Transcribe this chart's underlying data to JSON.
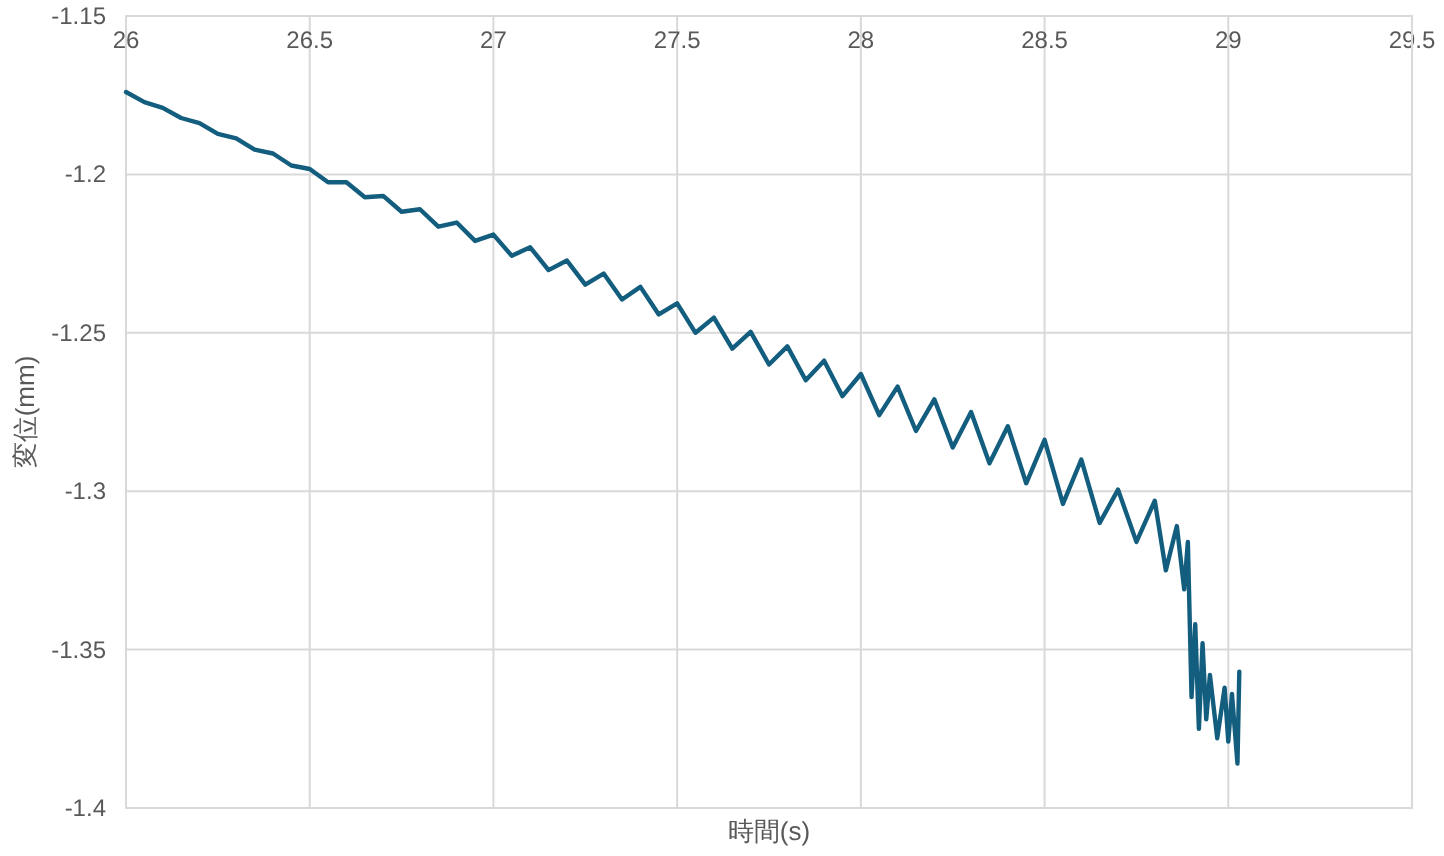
{
  "chart_data": {
    "type": "line",
    "xlabel": "時間(s)",
    "ylabel": "変位(mm)",
    "xlim": [
      26,
      29.5
    ],
    "ylim": [
      -1.4,
      -1.15
    ],
    "xticks": [
      26,
      26.5,
      27,
      27.5,
      28,
      28.5,
      29,
      29.5
    ],
    "yticks": [
      -1.4,
      -1.35,
      -1.3,
      -1.25,
      -1.2,
      -1.15
    ],
    "grid": true,
    "series": [
      {
        "color": "#135e7e",
        "x": [
          26.0,
          26.05,
          26.1,
          26.15,
          26.2,
          26.25,
          26.3,
          26.35,
          26.4,
          26.45,
          26.5,
          26.55,
          26.6,
          26.65,
          26.7,
          26.75,
          26.8,
          26.85,
          26.9,
          26.95,
          27.0,
          27.05,
          27.1,
          27.15,
          27.2,
          27.25,
          27.3,
          27.35,
          27.4,
          27.45,
          27.5,
          27.55,
          27.6,
          27.65,
          27.7,
          27.75,
          27.8,
          27.85,
          27.9,
          27.95,
          28.0,
          28.05,
          28.1,
          28.15,
          28.2,
          28.25,
          28.3,
          28.35,
          28.4,
          28.45,
          28.5,
          28.55,
          28.6,
          28.65,
          28.7,
          28.75,
          28.8,
          28.83,
          28.86,
          28.88,
          28.89,
          28.9,
          28.91,
          28.92,
          28.93,
          28.94,
          28.95,
          28.97,
          28.99,
          29.0,
          29.01,
          29.025,
          29.03
        ],
        "values": [
          -1.174,
          -1.1772,
          -1.179,
          -1.1822,
          -1.1838,
          -1.1872,
          -1.1886,
          -1.1922,
          -1.1934,
          -1.1972,
          -1.1983,
          -1.2025,
          -1.2025,
          -1.2072,
          -1.2068,
          -1.2118,
          -1.211,
          -1.2165,
          -1.2152,
          -1.221,
          -1.219,
          -1.2257,
          -1.223,
          -1.2302,
          -1.2272,
          -1.2348,
          -1.2313,
          -1.2395,
          -1.2355,
          -1.2442,
          -1.2407,
          -1.25,
          -1.2452,
          -1.255,
          -1.2497,
          -1.26,
          -1.2543,
          -1.265,
          -1.2588,
          -1.27,
          -1.263,
          -1.276,
          -1.267,
          -1.281,
          -1.271,
          -1.2862,
          -1.275,
          -1.2912,
          -1.2795,
          -1.2975,
          -1.2838,
          -1.304,
          -1.29,
          -1.31,
          -1.2995,
          -1.316,
          -1.303,
          -1.325,
          -1.311,
          -1.331,
          -1.316,
          -1.365,
          -1.342,
          -1.375,
          -1.348,
          -1.372,
          -1.358,
          -1.378,
          -1.362,
          -1.379,
          -1.364,
          -1.386,
          -1.357
        ]
      }
    ]
  }
}
